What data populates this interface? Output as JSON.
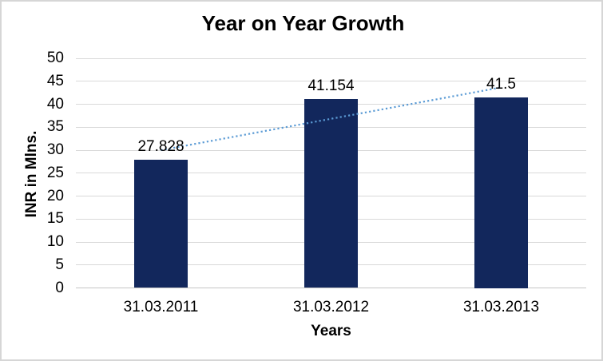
{
  "chart_data": {
    "type": "bar",
    "title": "Year on Year Growth",
    "xlabel": "Years",
    "ylabel": "INR in Mlns.",
    "categories": [
      "31.03.2011",
      "31.03.2012",
      "31.03.2013"
    ],
    "values": [
      27.828,
      41.154,
      41.5
    ],
    "data_labels": [
      "27.828",
      "41.154",
      "41.5"
    ],
    "ylim": [
      0,
      50
    ],
    "ytick_step": 5,
    "ytick_labels": [
      "0",
      "5",
      "10",
      "15",
      "20",
      "25",
      "30",
      "35",
      "40",
      "45",
      "50"
    ],
    "grid": "horizontal",
    "legend": "none",
    "trendline": {
      "type": "linear",
      "style": "dotted"
    },
    "colors": {
      "bar": "#12275C",
      "trendline": "#5B9BD5",
      "gridline": "#D9D9D9",
      "axis_line": "#C6C6C6",
      "text": "#000000",
      "border": "#D6D6D6",
      "background": "#FFFFFF"
    }
  }
}
